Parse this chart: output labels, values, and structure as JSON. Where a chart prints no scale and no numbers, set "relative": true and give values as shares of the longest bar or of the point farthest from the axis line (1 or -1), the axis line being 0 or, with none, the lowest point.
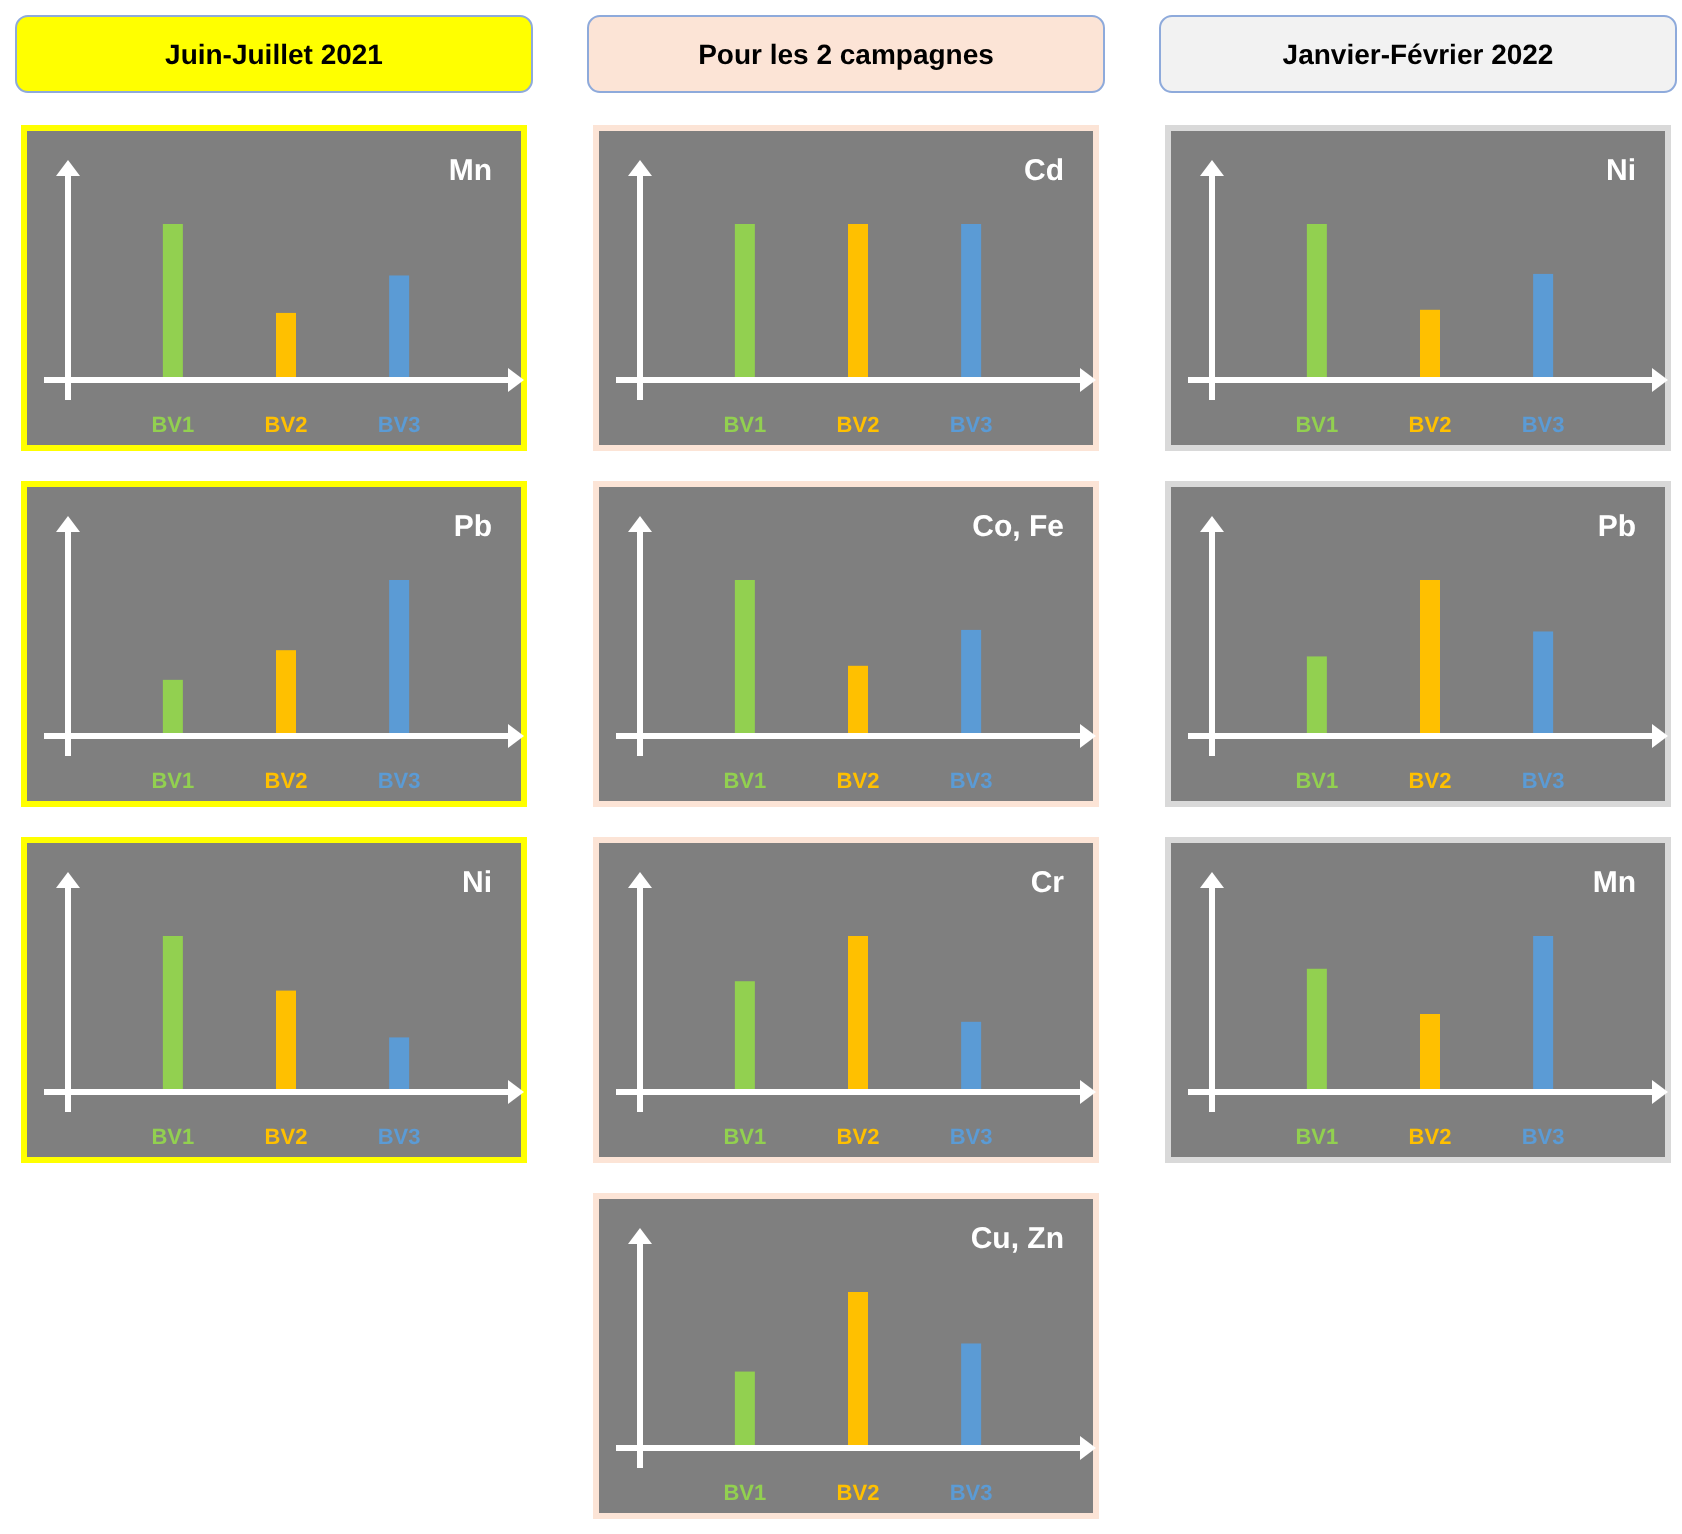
{
  "chart_data": [
    {
      "type": "bar",
      "title": "Mn",
      "annotations": [
        "Juin-Juillet 2021"
      ],
      "categories": [
        "BV1",
        "BV2",
        "BV3"
      ],
      "values": [
        1,
        0.43,
        0.67
      ],
      "colors": [
        "#92d050",
        "#ffc000",
        "#5b9bd5"
      ],
      "relative": true,
      "tick_labels": "x"
    },
    {
      "type": "bar",
      "title": "Pb",
      "categories": [
        "BV1",
        "BV2",
        "BV3"
      ],
      "values": [
        0.36,
        0.55,
        1
      ],
      "colors": [
        "#92d050",
        "#ffc000",
        "#5b9bd5"
      ],
      "relative": true,
      "tick_labels": "x"
    },
    {
      "type": "bar",
      "title": "Ni",
      "categories": [
        "BV1",
        "BV2",
        "BV3"
      ],
      "values": [
        1,
        0.65,
        0.35
      ],
      "colors": [
        "#92d050",
        "#ffc000",
        "#5b9bd5"
      ],
      "relative": true,
      "tick_labels": "x"
    },
    {
      "type": "bar",
      "title": "Cd",
      "annotations": [
        "Pour les 2 campagnes"
      ],
      "categories": [
        "BV1",
        "BV2",
        "BV3"
      ],
      "values": [
        1,
        1,
        1
      ],
      "colors": [
        "#92d050",
        "#ffc000",
        "#5b9bd5"
      ],
      "relative": true,
      "tick_labels": "x"
    },
    {
      "type": "bar",
      "title": "Co, Fe",
      "categories": [
        "BV1",
        "BV2",
        "BV3"
      ],
      "values": [
        1,
        0.45,
        0.68
      ],
      "colors": [
        "#92d050",
        "#ffc000",
        "#5b9bd5"
      ],
      "relative": true,
      "tick_labels": "x"
    },
    {
      "type": "bar",
      "title": "Cr",
      "categories": [
        "BV1",
        "BV2",
        "BV3"
      ],
      "values": [
        0.71,
        1,
        0.45
      ],
      "colors": [
        "#92d050",
        "#ffc000",
        "#5b9bd5"
      ],
      "relative": true,
      "tick_labels": "x"
    },
    {
      "type": "bar",
      "title": "Cu, Zn",
      "categories": [
        "BV1",
        "BV2",
        "BV3"
      ],
      "values": [
        0.49,
        1,
        0.67
      ],
      "colors": [
        "#92d050",
        "#ffc000",
        "#5b9bd5"
      ],
      "relative": true,
      "tick_labels": "x"
    },
    {
      "type": "bar",
      "title": "Ni",
      "annotations": [
        "Janvier-Février 2022"
      ],
      "categories": [
        "BV1",
        "BV2",
        "BV3"
      ],
      "values": [
        1,
        0.45,
        0.68
      ],
      "colors": [
        "#92d050",
        "#ffc000",
        "#5b9bd5"
      ],
      "relative": true,
      "tick_labels": "x"
    },
    {
      "type": "bar",
      "title": "Pb",
      "categories": [
        "BV1",
        "BV2",
        "BV3"
      ],
      "values": [
        0.51,
        1,
        0.67
      ],
      "colors": [
        "#92d050",
        "#ffc000",
        "#5b9bd5"
      ],
      "relative": true,
      "tick_labels": "x"
    },
    {
      "type": "bar",
      "title": "Mn",
      "categories": [
        "BV1",
        "BV2",
        "BV3"
      ],
      "values": [
        0.79,
        0.5,
        1
      ],
      "colors": [
        "#92d050",
        "#ffc000",
        "#5b9bd5"
      ],
      "relative": true,
      "tick_labels": "x"
    }
  ]
}
